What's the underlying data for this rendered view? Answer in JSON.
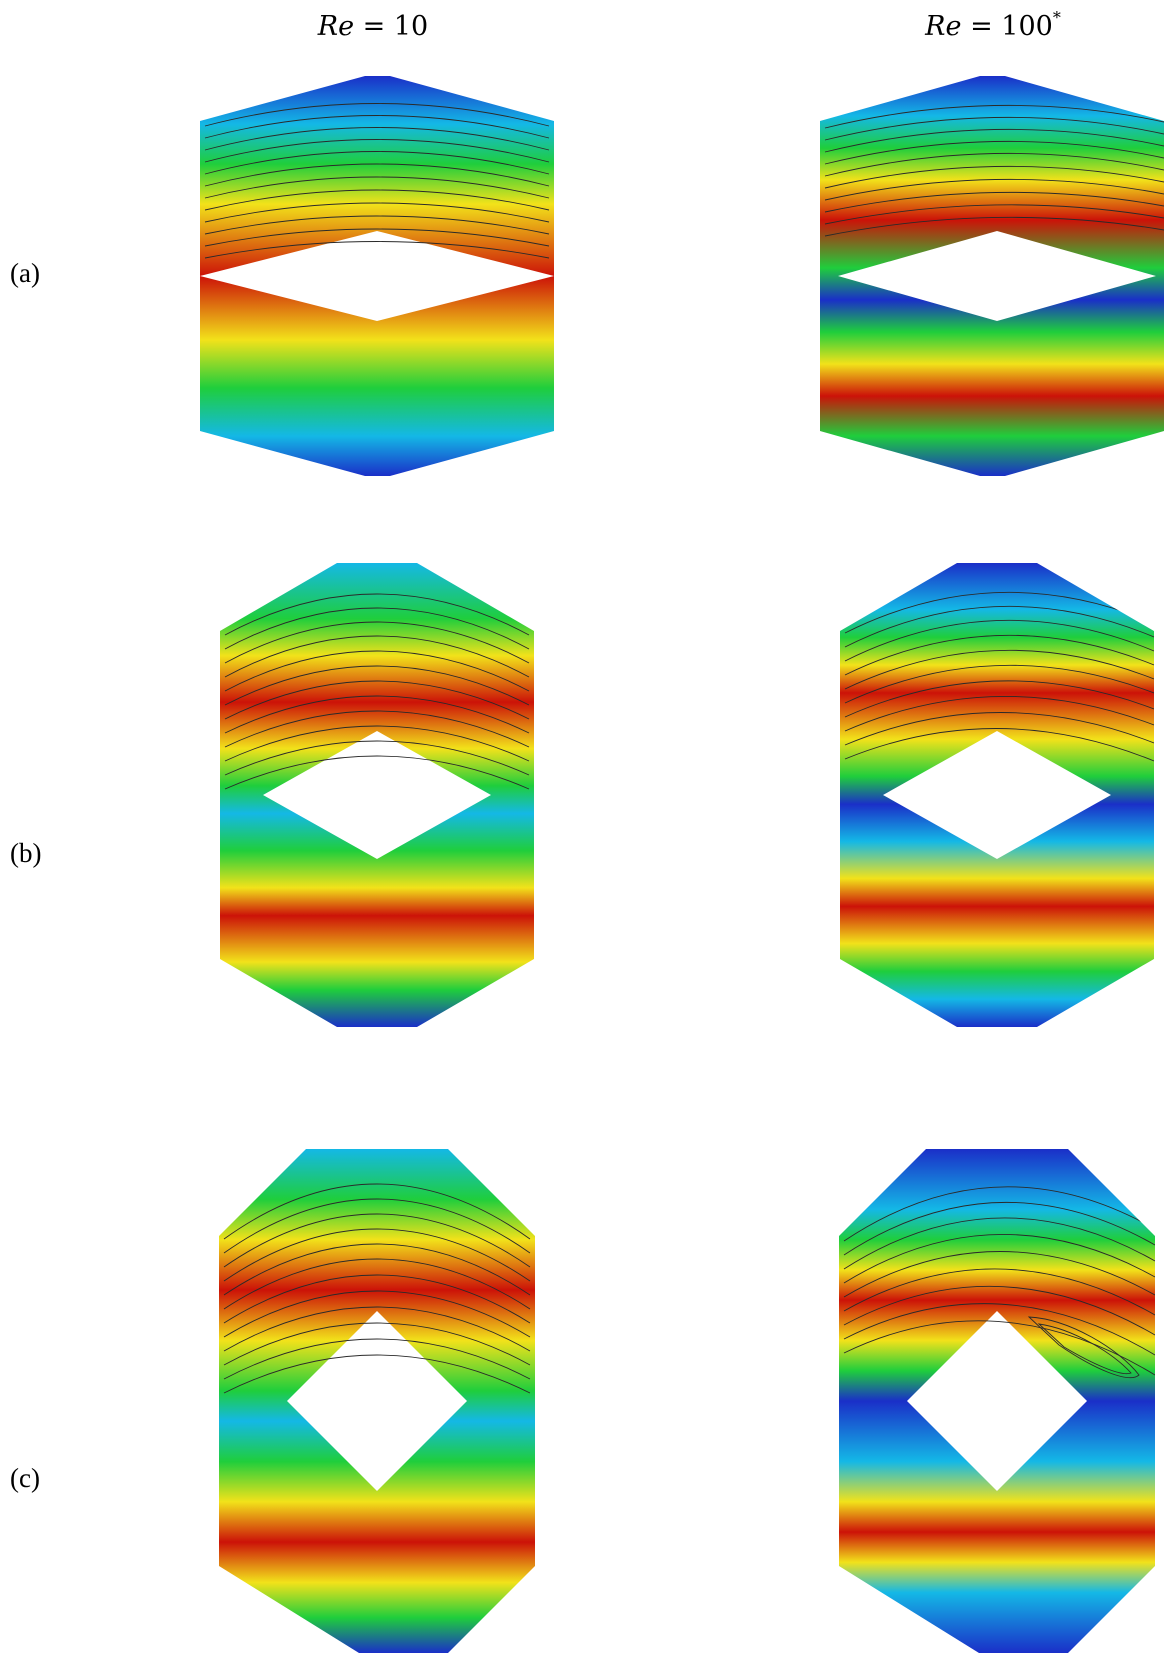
{
  "columns": [
    {
      "var": "Re",
      "rest": " = 10",
      "sup": ""
    },
    {
      "var": "Re",
      "rest": " = 100",
      "sup": "*"
    }
  ],
  "rows": [
    {
      "label": "(a)"
    },
    {
      "label": "(b)"
    },
    {
      "label": "(c)"
    }
  ],
  "colors": {
    "low": "#1a2fc8",
    "mid_low": "#14b8e6",
    "mid": "#1fce3c",
    "mid_high": "#f2e21a",
    "high": "#cc1208",
    "streamline": "#2a2a2a"
  }
}
